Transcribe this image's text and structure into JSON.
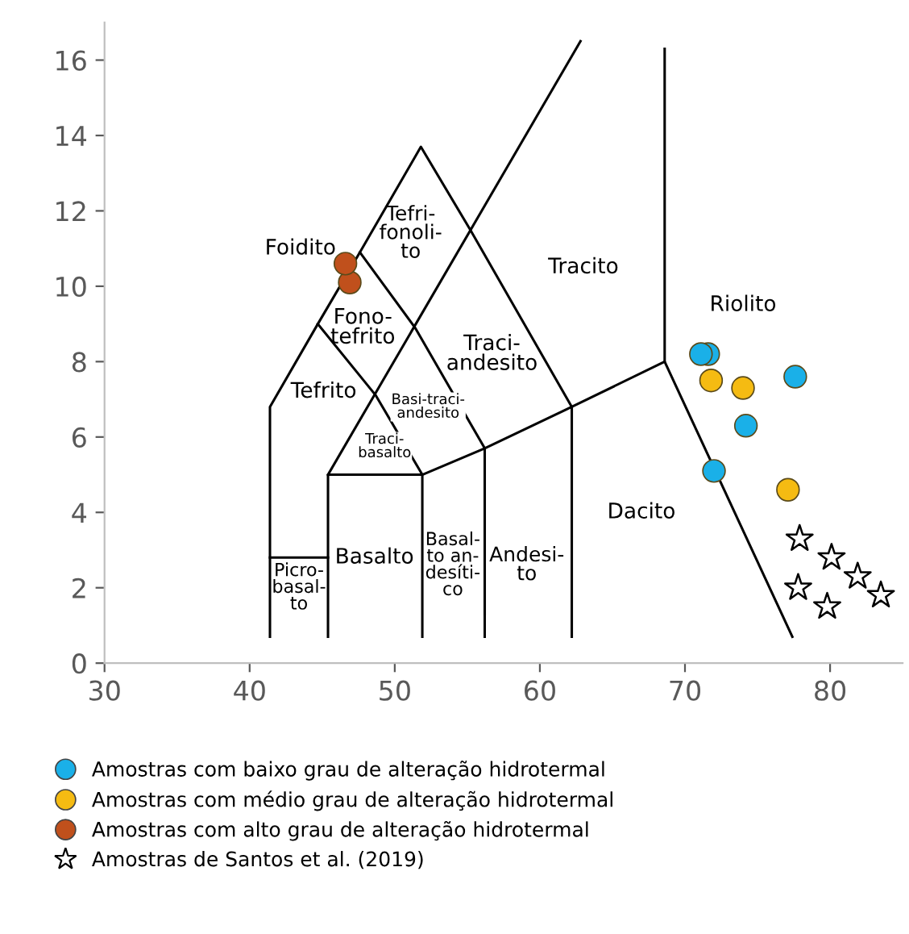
{
  "chart_data": {
    "type": "scatter",
    "xlim": [
      30,
      85
    ],
    "ylim": [
      0,
      17
    ],
    "xticks": [
      30,
      40,
      50,
      60,
      70,
      80
    ],
    "yticks": [
      0,
      2,
      4,
      6,
      8,
      10,
      12,
      14,
      16
    ],
    "grid": false,
    "legend": "bottom",
    "series": [
      {
        "type": "line",
        "color": "#000000",
        "x": [
          41.4,
          41.4,
          44.7,
          47.6,
          51.8,
          55.2,
          62.2,
          62.2
        ],
        "values": [
          0.7,
          6.8,
          9.0,
          10.9,
          13.7,
          11.5,
          6.8,
          0.7
        ]
      },
      {
        "type": "line",
        "color": "#000000",
        "x": [
          45.4,
          62.8
        ],
        "values": [
          5.0,
          16.5
        ]
      },
      {
        "type": "line",
        "color": "#000000",
        "x": [
          44.7,
          48.7,
          51.9,
          51.9
        ],
        "values": [
          9.0,
          7.1,
          5.0,
          0.7
        ]
      },
      {
        "type": "line",
        "color": "#000000",
        "x": [
          47.6,
          51.4,
          56.2,
          56.2
        ],
        "values": [
          10.9,
          8.9,
          5.7,
          0.7
        ]
      },
      {
        "type": "line",
        "color": "#000000",
        "x": [
          45.4,
          45.4,
          51.9,
          56.2,
          62.2,
          68.6,
          77.4
        ],
        "values": [
          0.7,
          5.0,
          5.0,
          5.7,
          6.8,
          8.0,
          0.7
        ]
      },
      {
        "type": "line",
        "color": "#000000",
        "x": [
          68.6,
          68.6
        ],
        "values": [
          8.0,
          16.3
        ]
      },
      {
        "type": "line",
        "color": "#000000",
        "x": [
          41.4,
          45.4
        ],
        "values": [
          2.8,
          2.8
        ]
      },
      {
        "name": "Amostras com baixo grau de alteração hidrotermal",
        "color": "#1ab0e8",
        "marker": "circle",
        "x": [
          71.1,
          71.6,
          77.6,
          74.2,
          72.0
        ],
        "values": [
          8.2,
          8.2,
          7.6,
          6.3,
          5.1
        ]
      },
      {
        "name": "Amostras com médio grau de alteração hidrotermal",
        "color": "#f5bb12",
        "marker": "circle",
        "x": [
          71.8,
          74.0,
          77.1
        ],
        "values": [
          7.5,
          7.3,
          4.6
        ]
      },
      {
        "name": "Amostras com alto grau de alteração hidrotermal",
        "color": "#c0501c",
        "marker": "circle",
        "x": [
          46.6,
          46.9
        ],
        "values": [
          10.6,
          10.1
        ]
      },
      {
        "name": "Amostras de Santos et al. (2019)",
        "color": "#000000",
        "marker": "star",
        "x": [
          77.9,
          80.1,
          81.9,
          83.5,
          77.8,
          79.8
        ],
        "values": [
          3.3,
          2.8,
          2.3,
          1.8,
          2.0,
          1.5
        ]
      }
    ],
    "annotations": [
      "Foidito",
      "Tefri-\nfonoli-\nto",
      "Tracito",
      "Riolito",
      "Fono-\ntefrito",
      "Traci-\nandesito",
      "Tefrito",
      "Basi-traci-\nandesito",
      "Traci-\nbasalto",
      "Basalto",
      "Basal-\nto an-\ndesíti-\nco",
      "Andesi-\nto",
      "Picro-\nbasal-\nto",
      "Dacito"
    ]
  }
}
